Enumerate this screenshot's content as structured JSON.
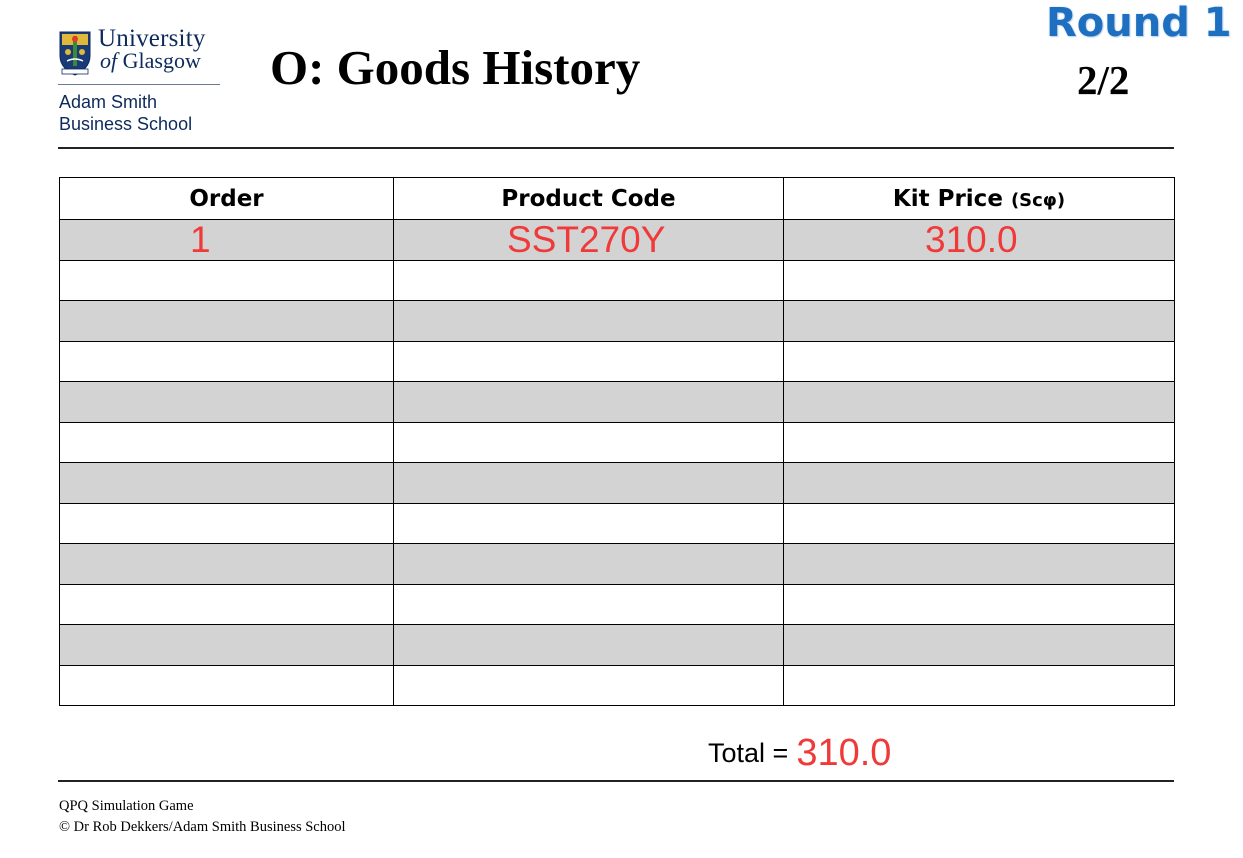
{
  "header": {
    "university_line1": "University",
    "university_of": "of",
    "university_line2": "Glasgow",
    "school_line1": "Adam Smith",
    "school_line2": "Business School",
    "title": "O: Goods History",
    "round_label": "Round 1",
    "page_label": "2/2"
  },
  "table": {
    "columns": {
      "order": "Order",
      "product_code": "Product Code",
      "kit_price": "Kit Price",
      "kit_price_unit": "(Scφ)"
    },
    "rows": [
      {
        "order": "1",
        "product_code": "SST270Y",
        "kit_price": "310.0"
      },
      {
        "order": "",
        "product_code": "",
        "kit_price": ""
      },
      {
        "order": "",
        "product_code": "",
        "kit_price": ""
      },
      {
        "order": "",
        "product_code": "",
        "kit_price": ""
      },
      {
        "order": "",
        "product_code": "",
        "kit_price": ""
      },
      {
        "order": "",
        "product_code": "",
        "kit_price": ""
      },
      {
        "order": "",
        "product_code": "",
        "kit_price": ""
      },
      {
        "order": "",
        "product_code": "",
        "kit_price": ""
      },
      {
        "order": "",
        "product_code": "",
        "kit_price": ""
      },
      {
        "order": "",
        "product_code": "",
        "kit_price": ""
      },
      {
        "order": "",
        "product_code": "",
        "kit_price": ""
      },
      {
        "order": "",
        "product_code": "",
        "kit_price": ""
      }
    ]
  },
  "total": {
    "label": "Total =",
    "value": "310.0"
  },
  "footer": {
    "line1": "QPQ Simulation Game",
    "line2": "© Dr Rob Dekkers/Adam Smith Business School"
  },
  "colors": {
    "handwritten_red": "#f03a3a",
    "round_blue": "#1f6fc0",
    "university_navy": "#0d2a5c",
    "shaded_row": "#d3d3d3"
  },
  "icons": {
    "crest": "university-crest-icon"
  }
}
